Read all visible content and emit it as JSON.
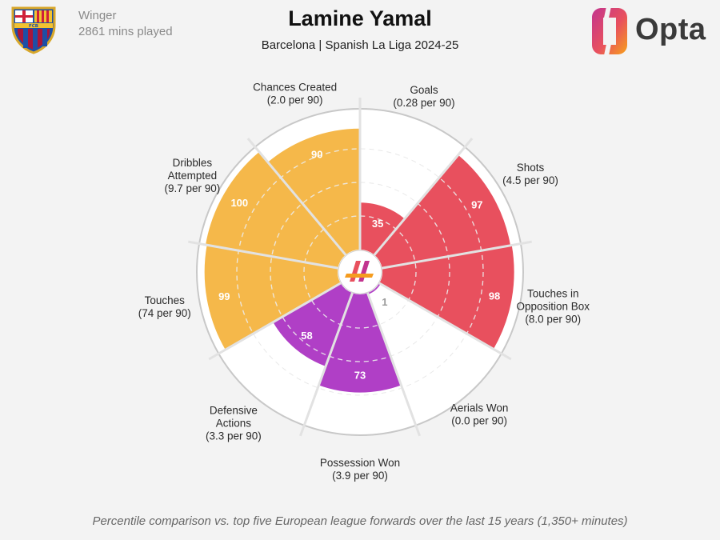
{
  "header": {
    "position": "Winger",
    "minutes": "2861 mins played",
    "title": "Lamine Yamal",
    "subtitle": "Barcelona | Spanish La Liga 2024-25",
    "brand": "Opta",
    "crest_text": "FCB"
  },
  "footnote": "Percentile comparison vs. top five European league forwards over the last 15 years (1,350+ minutes)",
  "colors": {
    "attacking": "#e8505e",
    "possession": "#f5b84a",
    "defending": "#b03fc6",
    "ring": "#c8c8c8",
    "background": "#f3f3f3"
  },
  "chart_data": {
    "type": "polar-bar",
    "scale": [
      0,
      100
    ],
    "categories": [
      {
        "name": "Goals",
        "detail": "(0.28 per 90)",
        "percentile": 35,
        "group": "attacking"
      },
      {
        "name": "Shots",
        "detail": "(4.5 per 90)",
        "percentile": 97,
        "group": "attacking"
      },
      {
        "name": "Touches in Opposition Box",
        "detail": "(8.0 per 90)",
        "percentile": 98,
        "group": "attacking"
      },
      {
        "name": "Aerials Won",
        "detail": "(0.0 per 90)",
        "percentile": 1,
        "group": "defending"
      },
      {
        "name": "Possession Won",
        "detail": "(3.9 per 90)",
        "percentile": 73,
        "group": "defending"
      },
      {
        "name": "Defensive Actions",
        "detail": "(3.3 per 90)",
        "percentile": 58,
        "group": "defending"
      },
      {
        "name": "Touches",
        "detail": "(74 per 90)",
        "percentile": 99,
        "group": "possession"
      },
      {
        "name": "Dribbles Attempted",
        "detail": "(9.7 per 90)",
        "percentile": 100,
        "group": "possession"
      },
      {
        "name": "Chances Created",
        "detail": "(2.0 per 90)",
        "percentile": 90,
        "group": "possession"
      }
    ]
  }
}
